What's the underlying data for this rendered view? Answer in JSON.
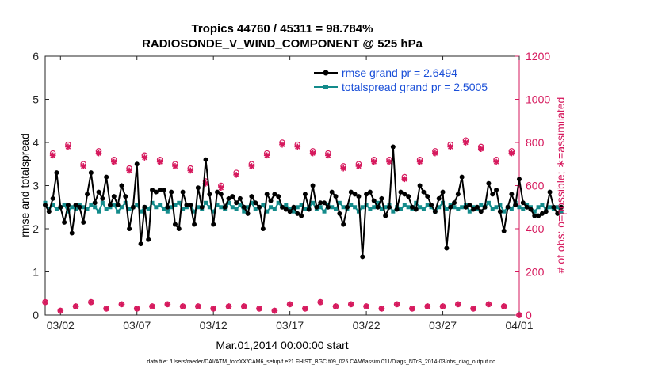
{
  "colors": {
    "rmse": "#000000",
    "spread": "#138B8B",
    "obs": "#D6195D",
    "legend_text": "#1A4FD8",
    "axis": "#262626"
  },
  "chart_data": {
    "type": "line",
    "title": "Tropics 44760 / 45311 = 98.784%",
    "subtitle": "RADIOSONDE_V_WIND_COMPONENT @ 525 hPa",
    "xlabel": "Mar.01,2014 00:00:00 start",
    "ylabel": "rmse and totalspread",
    "ylabel_right": "# of obs: o=possible; ∗=assimilated",
    "xlim": [
      0,
      31
    ],
    "ylim": [
      0,
      6
    ],
    "ylim_right": [
      0,
      1200
    ],
    "x_ticks": [
      1,
      6,
      11,
      16,
      21,
      26,
      31
    ],
    "x_tick_labels": [
      "03/02",
      "03/07",
      "03/12",
      "03/17",
      "03/22",
      "03/27",
      "04/01"
    ],
    "y_ticks": [
      "0",
      "1",
      "2",
      "3",
      "4",
      "5",
      "6"
    ],
    "y_ticks_right": [
      "0",
      "200",
      "400",
      "600",
      "800",
      "1000",
      "1200"
    ],
    "legend_position": "top-right",
    "series": [
      {
        "name": "rmse grand pr = 2.6494",
        "axis": "left",
        "start": 0.0,
        "step": 0.25,
        "values": [
          2.55,
          2.4,
          2.7,
          3.3,
          2.5,
          2.15,
          2.55,
          1.9,
          2.55,
          2.5,
          2.15,
          2.8,
          3.3,
          2.6,
          2.85,
          2.7,
          3.2,
          2.55,
          2.75,
          2.55,
          3.0,
          2.75,
          2.0,
          2.5,
          3.5,
          1.65,
          2.5,
          1.75,
          2.9,
          2.85,
          2.9,
          2.9,
          2.5,
          2.85,
          2.1,
          2.0,
          2.85,
          2.55,
          2.55,
          2.1,
          2.95,
          2.5,
          3.6,
          2.8,
          2.1,
          2.85,
          2.8,
          2.5,
          2.7,
          2.75,
          2.6,
          2.7,
          2.5,
          2.35,
          2.75,
          2.6,
          2.5,
          2.0,
          2.8,
          2.65,
          2.8,
          2.75,
          2.5,
          2.45,
          2.4,
          2.5,
          2.35,
          2.3,
          2.8,
          2.45,
          3.0,
          2.5,
          2.6,
          2.6,
          2.5,
          2.85,
          2.75,
          2.35,
          2.1,
          2.5,
          2.85,
          2.8,
          2.75,
          1.35,
          2.8,
          2.85,
          2.65,
          2.5,
          2.7,
          2.3,
          2.5,
          3.9,
          2.45,
          2.85,
          2.8,
          2.75,
          2.5,
          2.45,
          3.0,
          2.85,
          2.75,
          2.55,
          2.4,
          2.7,
          2.85,
          1.55,
          2.5,
          2.6,
          2.8,
          3.2,
          2.5,
          2.55,
          2.45,
          2.5,
          2.4,
          2.5,
          3.05,
          2.8,
          2.9,
          2.4,
          1.95,
          2.5,
          2.8,
          2.55,
          3.15,
          2.6,
          2.5,
          2.45,
          2.3,
          2.3,
          2.35,
          2.4,
          2.85,
          2.5,
          2.35,
          2.5
        ]
      },
      {
        "name": "totalspread grand pr = 2.5005",
        "axis": "left",
        "start": 0.0,
        "step": 0.25,
        "values": [
          2.6,
          2.45,
          2.55,
          2.45,
          2.5,
          2.55,
          2.4,
          2.5,
          2.45,
          2.55,
          2.5,
          2.45,
          2.55,
          2.5,
          2.4,
          2.6,
          2.45,
          2.5,
          2.55,
          2.4,
          2.5,
          2.6,
          2.45,
          2.5,
          2.55,
          2.4,
          2.5,
          2.45,
          2.6,
          2.5,
          2.55,
          2.45,
          2.4,
          2.5,
          2.55,
          2.6,
          2.45,
          2.5,
          2.55,
          2.4,
          2.5,
          2.45,
          2.6,
          2.5,
          2.4,
          2.55,
          2.5,
          2.45,
          2.6,
          2.5,
          2.45,
          2.55,
          2.4,
          2.5,
          2.6,
          2.45,
          2.5,
          2.55,
          2.4,
          2.5,
          2.45,
          2.6,
          2.5,
          2.55,
          2.45,
          2.4,
          2.5,
          2.55,
          2.45,
          2.5,
          2.6,
          2.45,
          2.5,
          2.4,
          2.55,
          2.5,
          2.45,
          2.6,
          2.5,
          2.45,
          2.55,
          2.5,
          2.4,
          2.5,
          2.55,
          2.45,
          2.5,
          2.6,
          2.45,
          2.5,
          2.55,
          2.4,
          2.5,
          2.45,
          2.55,
          2.5,
          2.45,
          2.6,
          2.5,
          2.45,
          2.55,
          2.5,
          2.4,
          2.5,
          2.6,
          2.45,
          2.55,
          2.5,
          2.45,
          2.5,
          2.55,
          2.4,
          2.5,
          2.45,
          2.55,
          2.5,
          2.6,
          2.45,
          2.5,
          2.55,
          2.4,
          2.5,
          2.45,
          2.6,
          2.5,
          2.45,
          2.55,
          2.5,
          2.4,
          2.5,
          2.55,
          2.45,
          2.5,
          2.45,
          2.5,
          2.4
        ]
      }
    ],
    "obs_series": [
      {
        "name": "obs possible (o)",
        "marker": "o",
        "axis": "right",
        "start": 0.0,
        "step": 0.5,
        "values": [
          60,
          750,
          20,
          790,
          40,
          700,
          60,
          760,
          30,
          720,
          50,
          680,
          30,
          740,
          40,
          720,
          50,
          700,
          40,
          680,
          40,
          620,
          30,
          600,
          40,
          660,
          40,
          700,
          30,
          750,
          20,
          800,
          50,
          790,
          30,
          760,
          60,
          750,
          40,
          690,
          50,
          700,
          40,
          720,
          30,
          720,
          50,
          640,
          30,
          720,
          40,
          760,
          40,
          790,
          50,
          810,
          30,
          780,
          50,
          720,
          40,
          760,
          0
        ]
      },
      {
        "name": "obs assimilated (*)",
        "marker": "*",
        "axis": "right",
        "start": 0.0,
        "step": 0.5,
        "values": [
          60,
          740,
          20,
          780,
          40,
          690,
          60,
          750,
          30,
          710,
          50,
          670,
          30,
          730,
          40,
          710,
          50,
          690,
          40,
          670,
          40,
          610,
          30,
          590,
          40,
          650,
          40,
          690,
          30,
          740,
          20,
          790,
          50,
          780,
          30,
          750,
          60,
          740,
          40,
          680,
          50,
          690,
          40,
          710,
          30,
          710,
          50,
          630,
          30,
          710,
          40,
          750,
          40,
          780,
          50,
          800,
          30,
          770,
          50,
          710,
          40,
          750,
          0
        ]
      }
    ]
  },
  "footer": {
    "data_file": "data file: /Users/raeder/DAI/ATM_forcXX/CAM6_setup/f.e21.FHIST_BGC.f09_025.CAM6assim.011/Diags_NTrS_2014-03/obs_diag_output.nc"
  }
}
